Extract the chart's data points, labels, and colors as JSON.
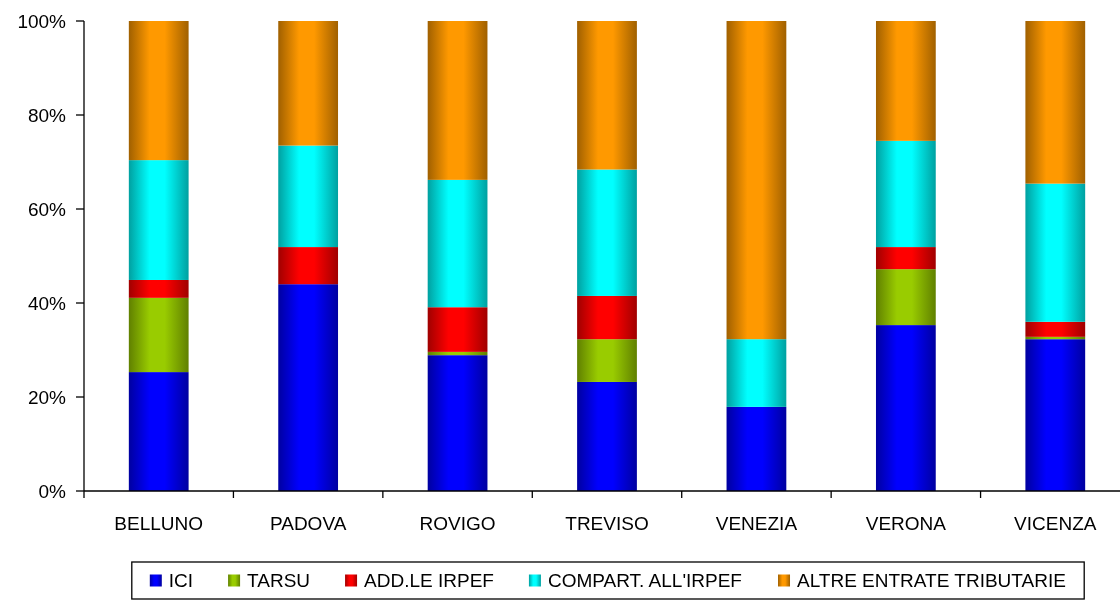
{
  "chart_data": {
    "type": "bar",
    "stacked": true,
    "categories": [
      "BELLUNO",
      "PADOVA",
      "ROVIGO",
      "TREVISO",
      "VENEZIA",
      "VERONA",
      "VICENZA"
    ],
    "series": [
      {
        "name": "ICI",
        "color": "#0000ff",
        "values": [
          25.3,
          44.0,
          28.9,
          23.2,
          17.9,
          35.3,
          32.3
        ]
      },
      {
        "name": "TARSU",
        "color": "#99cc00",
        "values": [
          15.8,
          null,
          0.7,
          9.1,
          null,
          11.9,
          0.5
        ]
      },
      {
        "name": "ADD.LE IRPEF",
        "color": "#ff0000",
        "values": [
          3.8,
          7.9,
          9.5,
          9.2,
          null,
          4.7,
          3.2
        ]
      },
      {
        "name": "COMPART. ALL'IRPEF",
        "color": "#00ffff",
        "values": [
          25.5,
          21.6,
          27.1,
          26.9,
          14.4,
          22.6,
          29.4
        ]
      },
      {
        "name": "ALTRE ENTRATE TRIBUTARIE",
        "color": "#ff9900",
        "values": [
          29.6,
          26.5,
          33.8,
          31.6,
          67.7,
          25.5,
          34.6
        ]
      }
    ],
    "ylim": [
      0,
      100
    ],
    "yticks": [
      {
        "value": 0,
        "label": "0%"
      },
      {
        "value": 20,
        "label": "20%"
      },
      {
        "value": 40,
        "label": "40%"
      },
      {
        "value": 60,
        "label": "60%"
      },
      {
        "value": 80,
        "label": "80%"
      },
      {
        "value": 100,
        "label": "100%"
      }
    ],
    "legend": "bottom"
  }
}
